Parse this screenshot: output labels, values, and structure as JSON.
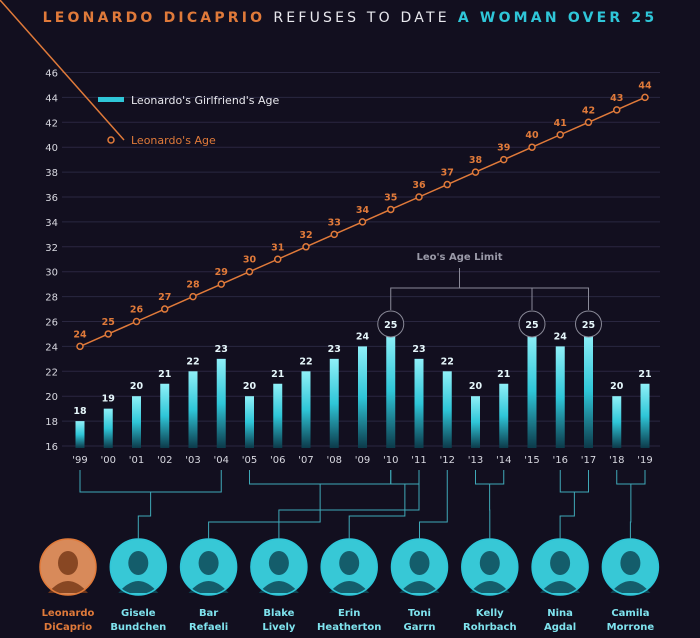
{
  "title": {
    "part1": "LEONARDO DICAPRIO",
    "part2": "REFUSES TO DATE",
    "part3": "A WOMAN OVER 25"
  },
  "colors": {
    "background": "#120f1f",
    "orange": "#e07a3a",
    "cyan": "#2fc6d8",
    "cyan_light": "#7fe3ee",
    "grid": "#2a2740",
    "bracket": "#3fa9b8"
  },
  "legend": {
    "girlfriend": "Leonardo's Girlfriend's Age",
    "leonardo": "Leonardo's Age"
  },
  "annotation": {
    "label": "Leo's Age Limit",
    "circled_value": "25"
  },
  "chart_data": {
    "type": "bar",
    "title": "LEONARDO DICAPRIO REFUSES TO DATE A WOMAN OVER 25",
    "categories": [
      "'99",
      "'00",
      "'01",
      "'02",
      "'03",
      "'04",
      "'05",
      "'06",
      "'07",
      "'08",
      "'09",
      "'10",
      "'11",
      "'12",
      "'13",
      "'14",
      "'15",
      "'16",
      "'17",
      "'18",
      "'19"
    ],
    "ylim": [
      16,
      46
    ],
    "yticks": [
      16,
      18,
      20,
      22,
      24,
      26,
      28,
      30,
      32,
      34,
      36,
      38,
      40,
      42,
      44,
      46
    ],
    "grid": true,
    "legend_position": "top-left",
    "series": [
      {
        "name": "Leonardo's Girlfriend's Age",
        "type": "bar",
        "values": [
          18,
          19,
          20,
          21,
          22,
          23,
          20,
          21,
          22,
          23,
          24,
          25,
          23,
          22,
          20,
          21,
          25,
          24,
          25,
          20,
          21
        ]
      },
      {
        "name": "Leonardo's Age",
        "type": "line",
        "values": [
          24,
          25,
          26,
          27,
          28,
          29,
          30,
          31,
          32,
          33,
          34,
          35,
          36,
          37,
          38,
          39,
          40,
          41,
          42,
          43,
          44
        ]
      }
    ],
    "age_limit_years": [
      "'10",
      "'15",
      "'17"
    ],
    "girlfriends": [
      {
        "name": "Leonardo",
        "name2": "DiCaprio",
        "years": []
      },
      {
        "name": "Gisele",
        "name2": "Bundchen",
        "years": [
          "'99",
          "'04"
        ]
      },
      {
        "name": "Bar",
        "name2": "Refaeli",
        "years": [
          "'05",
          "'10"
        ]
      },
      {
        "name": "Blake",
        "name2": "Lively",
        "years": [
          "'11"
        ]
      },
      {
        "name": "Erin",
        "name2": "Heatherton",
        "years": [
          "'10",
          "'11"
        ]
      },
      {
        "name": "Toni",
        "name2": "Garrn",
        "years": [
          "'12"
        ]
      },
      {
        "name": "Kelly",
        "name2": "Rohrbach",
        "years": [
          "'13",
          "'14"
        ]
      },
      {
        "name": "Nina",
        "name2": "Agdal",
        "years": [
          "'16",
          "'17"
        ]
      },
      {
        "name": "Camila",
        "name2": "Morrone",
        "years": [
          "'18",
          "'19"
        ]
      }
    ]
  }
}
